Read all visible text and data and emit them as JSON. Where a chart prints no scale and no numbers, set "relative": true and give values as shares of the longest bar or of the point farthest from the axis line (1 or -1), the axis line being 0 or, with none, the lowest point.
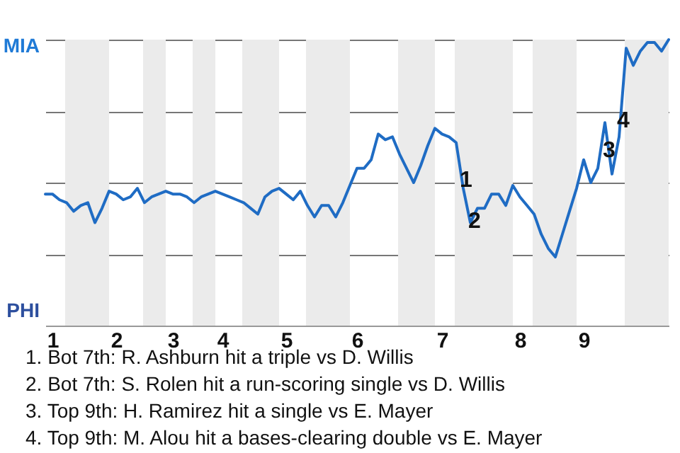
{
  "chart_data": {
    "type": "line",
    "relative": true,
    "categories": [
      null,
      "1",
      null,
      null,
      null,
      null,
      null,
      null,
      null,
      null,
      "2",
      null,
      null,
      null,
      null,
      null,
      null,
      null,
      "3",
      null,
      null,
      null,
      null,
      null,
      null,
      "4",
      null,
      null,
      null,
      null,
      null,
      null,
      null,
      null,
      "5",
      null,
      null,
      null,
      null,
      null,
      null,
      null,
      null,
      null,
      "6",
      null,
      null,
      null,
      null,
      null,
      null,
      null,
      null,
      null,
      null,
      null,
      "7",
      null,
      null,
      null,
      null,
      null,
      null,
      null,
      null,
      null,
      null,
      "8",
      null,
      null,
      null,
      null,
      null,
      null,
      null,
      null,
      "9",
      null,
      null,
      null,
      null,
      null,
      null,
      null,
      null,
      null,
      null,
      null,
      null
    ],
    "series": [
      {
        "color": "#1f6cc4",
        "values": [
          0.46,
          0.46,
          0.44,
          0.43,
          0.4,
          0.42,
          0.43,
          0.36,
          0.41,
          0.47,
          0.46,
          0.44,
          0.45,
          0.48,
          0.43,
          0.45,
          0.46,
          0.47,
          0.46,
          0.46,
          0.45,
          0.43,
          0.45,
          0.46,
          0.47,
          0.46,
          0.45,
          0.44,
          0.43,
          0.41,
          0.39,
          0.45,
          0.47,
          0.48,
          0.46,
          0.44,
          0.47,
          0.42,
          0.38,
          0.42,
          0.42,
          0.38,
          0.43,
          0.49,
          0.55,
          0.55,
          0.58,
          0.67,
          0.65,
          0.66,
          0.6,
          0.55,
          0.5,
          0.56,
          0.63,
          0.69,
          0.67,
          0.66,
          0.64,
          0.48,
          0.36,
          0.41,
          0.41,
          0.46,
          0.46,
          0.42,
          0.49,
          0.45,
          0.42,
          0.39,
          0.32,
          0.27,
          0.24,
          0.32,
          0.4,
          0.48,
          0.58,
          0.5,
          0.55,
          0.71,
          0.53,
          0.66,
          0.97,
          0.91,
          0.96,
          0.99,
          0.99,
          0.96,
          1
        ],
        "name": null
      }
    ],
    "grid": "y",
    "annotations": [
      "MIA",
      "PHI",
      "1",
      "2",
      "3",
      "4",
      "1. Bot 7th: R. Ashburn hit a triple vs D. Willis",
      "2. Bot 7th: S. Rolen hit a run-scoring single vs D. Willis",
      "3. Top 9th: H. Ramirez hit a single vs E. Mayer",
      "4. Top 9th: M. Alou hit a bases-clearing double vs E. Mayer"
    ]
  }
}
